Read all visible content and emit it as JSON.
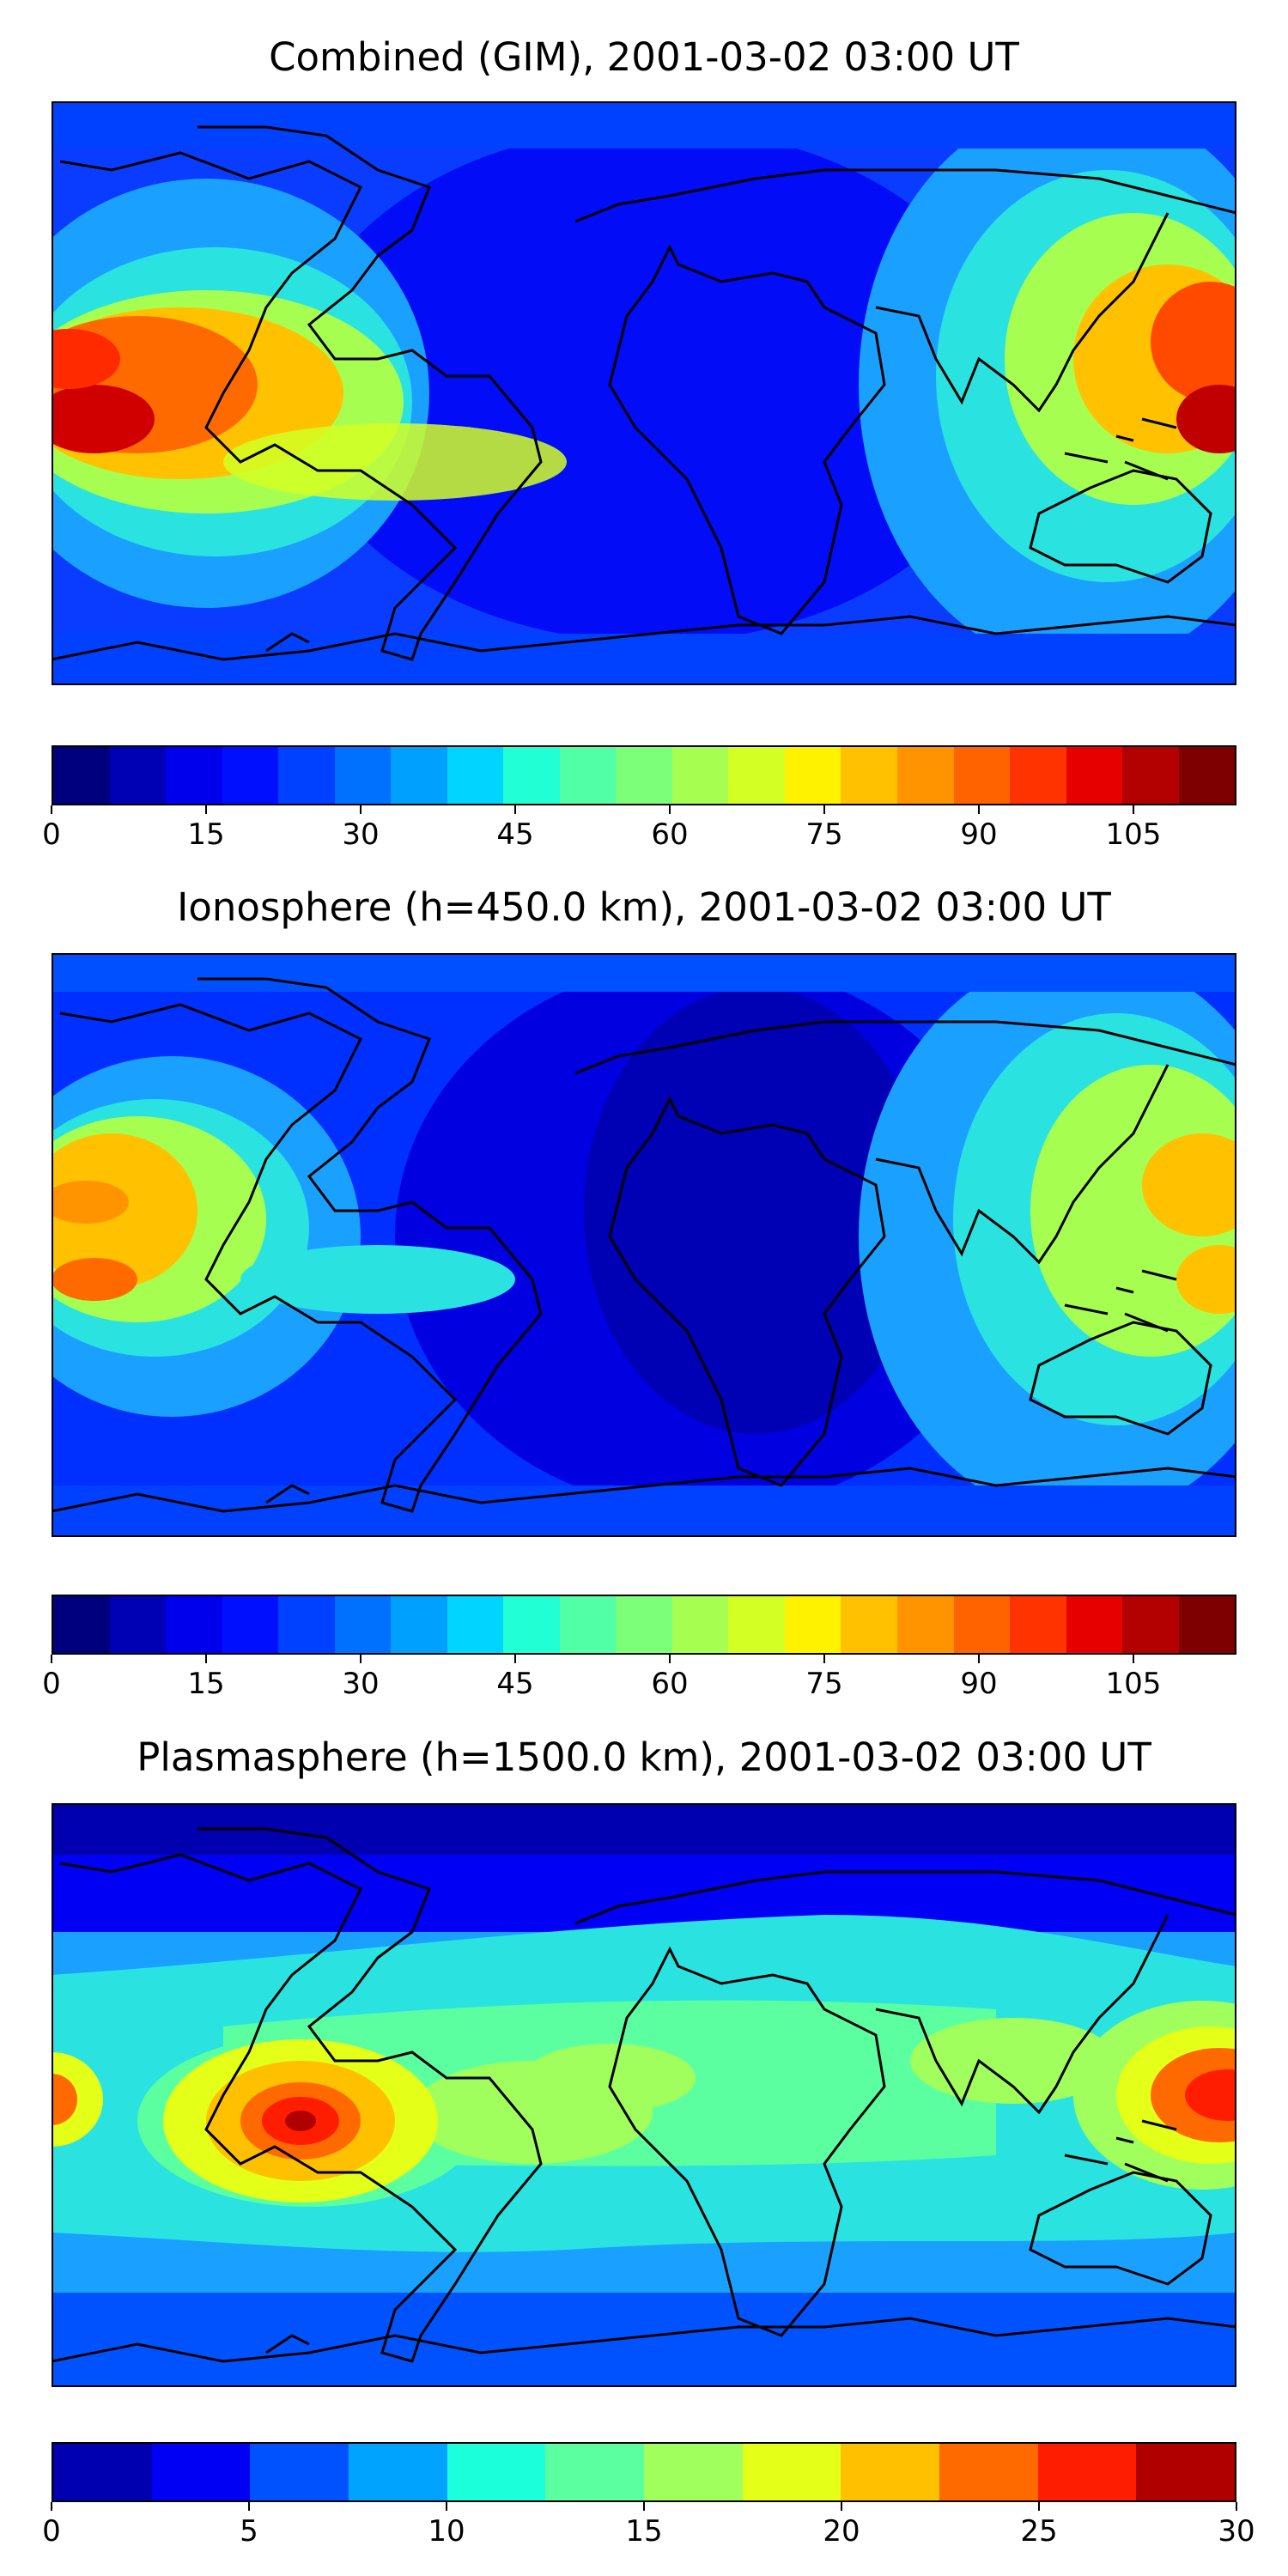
{
  "panels": [
    {
      "id": "combined",
      "title": "Combined (GIM), 2001-03-02 03:00 UT",
      "colorbar": {
        "min": 0,
        "max": 115,
        "ticks": [
          0,
          15,
          30,
          45,
          60,
          75,
          90,
          105
        ],
        "tick_labels": [
          "0",
          "15",
          "30",
          "45",
          "60",
          "75",
          "90",
          "105"
        ],
        "colors": [
          "#00007f",
          "#0000b5",
          "#0000ed",
          "#0010ff",
          "#0040ff",
          "#0070ff",
          "#00a0ff",
          "#00d4ff",
          "#21ffd5",
          "#50ffa6",
          "#7cff79",
          "#a6ff50",
          "#d3ff24",
          "#fff200",
          "#ffc100",
          "#ff9400",
          "#ff6300",
          "#ff3300",
          "#e60000",
          "#b30000",
          "#7f0000"
        ]
      }
    },
    {
      "id": "ionosphere",
      "title": "Ionosphere  (h=450.0 km), 2001-03-02 03:00 UT",
      "colorbar": {
        "min": 0,
        "max": 115,
        "ticks": [
          0,
          15,
          30,
          45,
          60,
          75,
          90,
          105
        ],
        "tick_labels": [
          "0",
          "15",
          "30",
          "45",
          "60",
          "75",
          "90",
          "105"
        ],
        "colors": [
          "#00007f",
          "#0000b5",
          "#0000ed",
          "#0010ff",
          "#0040ff",
          "#0070ff",
          "#00a0ff",
          "#00d4ff",
          "#21ffd5",
          "#50ffa6",
          "#7cff79",
          "#a6ff50",
          "#d3ff24",
          "#fff200",
          "#ffc100",
          "#ff9400",
          "#ff6300",
          "#ff3300",
          "#e60000",
          "#b30000",
          "#7f0000"
        ]
      }
    },
    {
      "id": "plasmasphere",
      "title": "Plasmasphere (h=1500.0 km), 2001-03-02 03:00 UT",
      "colorbar": {
        "min": 0,
        "max": 30,
        "ticks": [
          0,
          5,
          10,
          15,
          20,
          25,
          30
        ],
        "tick_labels": [
          "0",
          "5",
          "10",
          "15",
          "20",
          "25",
          "30"
        ],
        "colors": [
          "#0000b0",
          "#0000f5",
          "#0052ff",
          "#00a4ff",
          "#1cffdb",
          "#5cffa0",
          "#a0ff5c",
          "#e4ff18",
          "#ffc000",
          "#ff6a00",
          "#ff1d00",
          "#b00000"
        ]
      }
    }
  ]
}
